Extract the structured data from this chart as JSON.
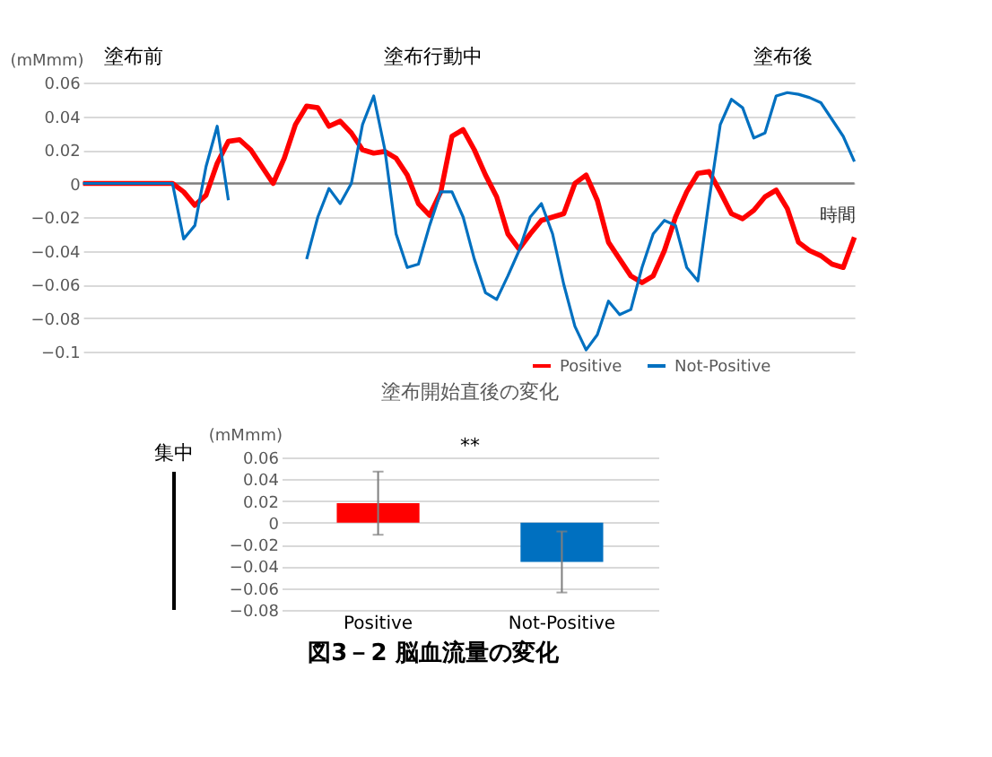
{
  "chart_data": [
    {
      "type": "line",
      "ylabel": "(mMmm)",
      "xlabel": "時間",
      "categories": [
        null,
        null,
        null,
        null,
        null,
        null,
        null,
        null,
        null,
        null,
        null,
        null,
        null,
        null,
        null,
        null,
        null,
        null,
        null,
        null,
        null,
        null,
        null,
        null,
        null,
        null,
        null,
        null,
        null,
        null,
        null,
        null,
        null,
        null,
        null,
        null,
        null,
        null,
        null,
        null,
        null,
        null,
        null,
        null,
        null,
        null,
        null,
        null,
        null,
        null,
        null,
        null,
        null,
        null,
        null,
        null,
        null,
        null,
        null,
        null,
        null,
        null,
        null,
        null,
        null,
        null,
        null,
        null,
        null,
        null
      ],
      "series": [
        {
          "name": "Positive",
          "color": "#ff0000",
          "values": [
            0,
            0,
            0,
            0,
            0,
            0,
            0,
            0,
            0,
            -0.005,
            -0.013,
            -0.007,
            0.012,
            0.025,
            0.026,
            0.02,
            0.01,
            0.0,
            0.015,
            0.035,
            0.046,
            0.045,
            0.034,
            0.037,
            0.03,
            0.02,
            0.018,
            0.019,
            0.015,
            0.005,
            -0.012,
            -0.019,
            -0.005,
            0.028,
            0.032,
            0.02,
            0.005,
            -0.008,
            -0.03,
            -0.039,
            -0.03,
            -0.022,
            -0.02,
            -0.018,
            0.0,
            0.005,
            -0.01,
            -0.035,
            -0.045,
            -0.055,
            -0.059,
            -0.055,
            -0.04,
            -0.02,
            -0.005,
            0.006,
            0.007,
            -0.005,
            -0.018,
            -0.021,
            -0.016,
            -0.008,
            -0.004,
            -0.015,
            -0.035,
            -0.04,
            -0.043,
            -0.048,
            -0.05,
            -0.032
          ]
        },
        {
          "name": "Not-Positive",
          "color": "#0070c0",
          "values": [
            0,
            0,
            0,
            0,
            0,
            0,
            0,
            0,
            0,
            -0.033,
            -0.025,
            0.01,
            0.034,
            -0.01,
            null,
            null,
            null,
            null,
            null,
            null,
            -0.045,
            -0.02,
            -0.003,
            -0.012,
            0.0,
            0.035,
            0.052,
            0.02,
            -0.03,
            -0.05,
            -0.048,
            -0.025,
            -0.005,
            -0.005,
            -0.02,
            -0.045,
            -0.065,
            -0.069,
            -0.055,
            -0.04,
            -0.02,
            -0.012,
            -0.03,
            -0.06,
            -0.085,
            -0.099,
            -0.09,
            -0.07,
            -0.078,
            -0.075,
            -0.05,
            -0.03,
            -0.022,
            -0.025,
            -0.05,
            -0.058,
            -0.01,
            0.035,
            0.05,
            0.045,
            0.027,
            0.03,
            0.052,
            0.054,
            0.053,
            0.051,
            0.048,
            0.038,
            0.028,
            0.013
          ]
        }
      ],
      "ylim": [
        -0.1,
        0.06
      ],
      "yticks": [
        -0.1,
        -0.08,
        -0.06,
        -0.04,
        -0.02,
        0,
        0.02,
        0.04,
        0.06
      ],
      "grid": "y",
      "legend": "bottom right",
      "marker": "none",
      "line_style": "solid",
      "ref_lines": [
        {
          "axis": "y",
          "value": 0,
          "color": "#808080"
        }
      ],
      "annotations": [
        "図3－2 脳血流量の変化",
        "塗布前",
        "塗布行動中",
        "塗布後"
      ]
    },
    {
      "type": "bar",
      "title": "塗布開始直後の変化",
      "ylabel": "(mMmm)",
      "categories": [
        "Positive",
        "Not-Positive"
      ],
      "values": [
        0.018,
        -0.036
      ],
      "colors": [
        "#ff0000",
        "#0070c0"
      ],
      "errors": [
        [
          -0.011,
          0.047
        ],
        [
          -0.064,
          -0.008
        ]
      ],
      "ylim": [
        -0.08,
        0.06
      ],
      "yticks": [
        -0.08,
        -0.06,
        -0.04,
        -0.02,
        0,
        0.02,
        0.04,
        0.06
      ],
      "grid": "y",
      "annotations": [
        "**",
        "集中"
      ]
    }
  ]
}
